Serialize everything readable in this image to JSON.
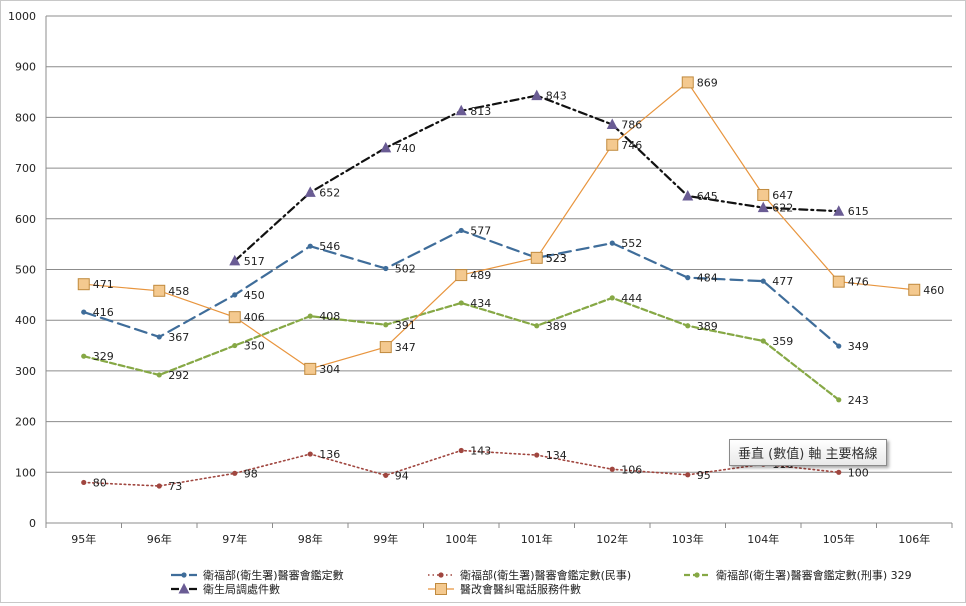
{
  "chart_data": {
    "type": "line",
    "categories": [
      "95年",
      "96年",
      "97年",
      "98年",
      "99年",
      "100年",
      "101年",
      "102年",
      "103年",
      "104年",
      "105年",
      "106年"
    ],
    "ylim": [
      0,
      1000
    ],
    "yticks": [
      0,
      100,
      200,
      300,
      400,
      500,
      600,
      700,
      800,
      900,
      1000
    ],
    "grid": true,
    "legend_position": "bottom",
    "series": [
      {
        "name": "衛福部(衛生署)醫審會鑑定數",
        "color": "#3f6d9a",
        "style": "dash-long",
        "marker": "circle",
        "values": [
          416,
          367,
          450,
          546,
          502,
          577,
          523,
          552,
          484,
          477,
          349,
          null
        ]
      },
      {
        "name": "衛福部(衛生署)醫審會鑑定數(民事)",
        "color": "#a0463f",
        "style": "dot",
        "marker": "circle",
        "values": [
          80,
          73,
          98,
          136,
          94,
          143,
          134,
          106,
          95,
          116,
          100,
          null
        ]
      },
      {
        "name": "衛福部(衛生署)醫審會鑑定數(刑事) 329",
        "color": "#86a845",
        "style": "dash",
        "marker": "circle",
        "values": [
          329,
          292,
          350,
          408,
          391,
          434,
          389,
          444,
          389,
          359,
          243,
          null
        ]
      },
      {
        "name": "衛生局調處件數",
        "color": "#111111",
        "style": "dash-dot",
        "marker": "triangle",
        "markerColor": "#6a5c94",
        "values": [
          null,
          null,
          517,
          652,
          740,
          813,
          843,
          786,
          645,
          622,
          615,
          null
        ]
      },
      {
        "name": "醫改會醫糾電話服務件數",
        "color": "#e8953e",
        "style": "solid",
        "marker": "square",
        "markerColor": "#f4c98f",
        "values": [
          471,
          458,
          406,
          304,
          347,
          489,
          523,
          746,
          869,
          647,
          476,
          460
        ]
      }
    ]
  },
  "tooltip": {
    "text": "垂直 (數值) 軸 主要格線"
  }
}
